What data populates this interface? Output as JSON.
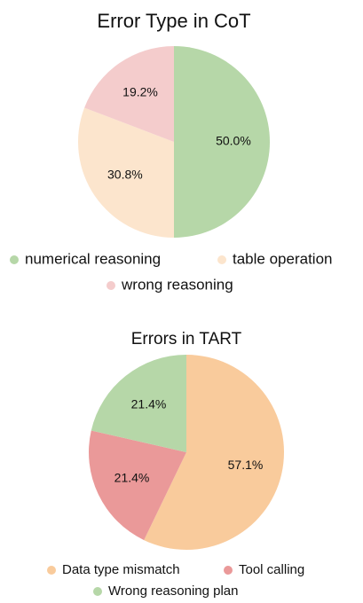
{
  "chart_data": [
    {
      "type": "pie",
      "title": "Error Type in CoT",
      "categories": [
        "numerical reasoning",
        "table operation",
        "wrong reasoning"
      ],
      "values": [
        50.0,
        30.8,
        19.2
      ],
      "value_labels": [
        "50.0%",
        "30.8%",
        "19.2%"
      ],
      "colors": [
        "#b6d7a8",
        "#fce5cd",
        "#f4cccc"
      ]
    },
    {
      "type": "pie",
      "title": "Errors in TART",
      "categories": [
        "Data type mismatch",
        "Tool calling",
        "Wrong reasoning plan"
      ],
      "values": [
        57.1,
        21.4,
        21.4
      ],
      "value_labels": [
        "57.1%",
        "21.4%",
        "21.4%"
      ],
      "colors": [
        "#f9cb9c",
        "#ea9999",
        "#b6d7a8"
      ]
    }
  ]
}
